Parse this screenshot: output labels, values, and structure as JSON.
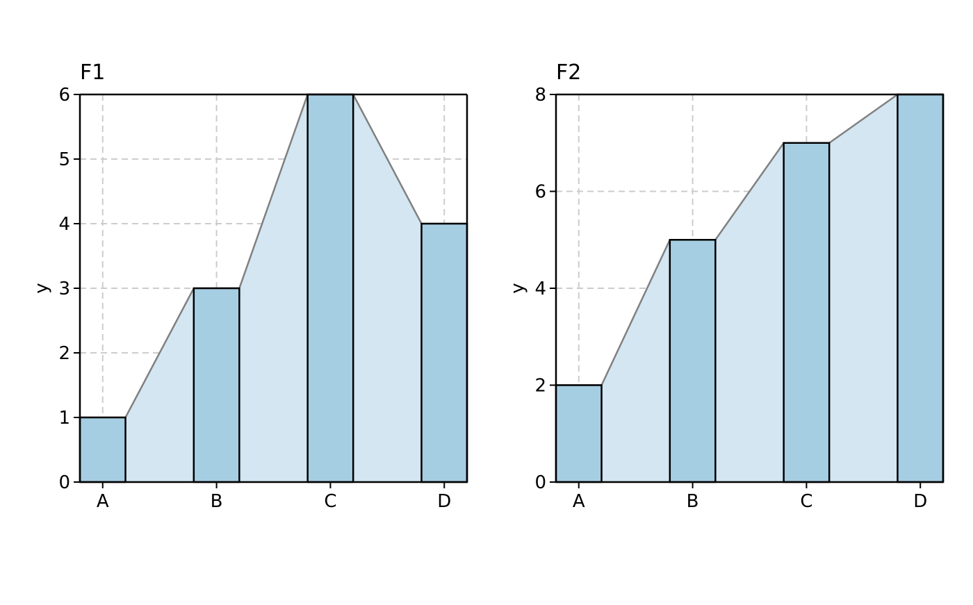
{
  "colors": {
    "bar_fill": "#a6cee3",
    "area_fill": "#d3e6f1",
    "connector_line": "#808080",
    "grid": "#cccccc",
    "axis": "#000000",
    "background": "#ffffff"
  },
  "chart_data": [
    {
      "type": "bar",
      "title": "F1",
      "xlabel": "",
      "ylabel": "y",
      "categories": [
        "A",
        "B",
        "C",
        "D"
      ],
      "values": [
        1,
        3,
        6,
        4
      ],
      "ylim": [
        0,
        6
      ],
      "yticks": [
        0,
        1,
        2,
        3,
        4,
        5,
        6
      ],
      "grid": true,
      "area_connector": true
    },
    {
      "type": "bar",
      "title": "F2",
      "xlabel": "",
      "ylabel": "y",
      "categories": [
        "A",
        "B",
        "C",
        "D"
      ],
      "values": [
        2,
        5,
        7,
        8
      ],
      "ylim": [
        0,
        8
      ],
      "yticks": [
        0,
        2,
        4,
        6,
        8
      ],
      "grid": true,
      "area_connector": true
    }
  ]
}
